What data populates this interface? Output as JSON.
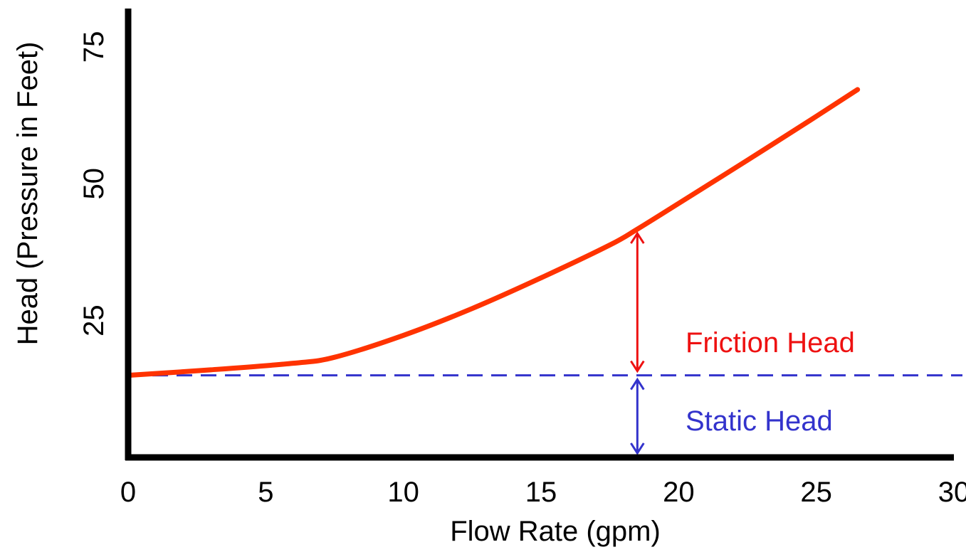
{
  "chart_data": {
    "type": "line",
    "xlabel": "Flow Rate (gpm)",
    "ylabel": "Head (Pressure in Feet)",
    "xlim": [
      0,
      30
    ],
    "ylim": [
      0,
      82
    ],
    "x_ticks": [
      0,
      5,
      10,
      15,
      20,
      25,
      30
    ],
    "y_ticks": [
      25,
      50,
      75
    ],
    "grid": false,
    "series": [
      {
        "color": "#ff3300",
        "x": [
          0,
          3,
          6,
          7.5,
          10,
          12.5,
          15,
          17.5,
          18.5,
          20,
          22.5,
          25,
          26.5
        ],
        "y": [
          15,
          16,
          17.2,
          18.3,
          22.3,
          27.2,
          32.8,
          38.8,
          41.7,
          46.4,
          54.3,
          62.3,
          67.2
        ]
      }
    ],
    "static_head": {
      "y": 15,
      "color": "#3333cc"
    },
    "annotations": {
      "friction_head": {
        "label": "Friction Head",
        "color": "#ee1111",
        "x": 18.5,
        "y_from": 15,
        "y_to": 41.7
      },
      "static_head": {
        "label": "Static Head",
        "color": "#3333cc",
        "x": 18.5,
        "y_from": 0,
        "y_to": 15
      }
    }
  }
}
